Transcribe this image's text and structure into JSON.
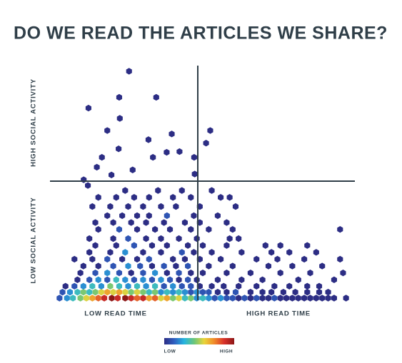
{
  "chart_data": {
    "type": "hexbin",
    "title": "DO WE READ THE ARTICLES WE SHARE?",
    "x_label_low": "LOW READ TIME",
    "x_label_high": "HIGH READ TIME",
    "y_label_high": "HIGH SOCIAL ACTIVITY",
    "y_label_low": "LOW SOCIAL ACTIVITY",
    "xlim": [
      0,
      100
    ],
    "ylim": [
      0,
      100
    ],
    "colorbar": {
      "label": "NUMBER OF ARTICLES",
      "low": "LOW",
      "high": "HIGH",
      "colors": [
        "#2c2d84",
        "#2f5fc0",
        "#26b5e0",
        "#6cc679",
        "#e9d43a",
        "#f08a2a",
        "#d8302a",
        "#8c1717"
      ],
      "clim": [
        1,
        10
      ]
    },
    "series": [
      {
        "x": [
          2,
          4.5,
          6.5,
          9,
          11,
          13,
          15,
          17,
          19.5,
          21.5,
          24,
          26,
          28,
          30,
          32,
          34,
          36,
          38,
          40,
          42,
          44,
          46,
          48,
          50,
          52,
          54,
          56,
          58,
          60,
          62,
          64,
          66,
          68,
          70,
          72,
          74,
          76,
          78,
          80,
          82,
          84,
          86,
          88,
          90,
          92,
          94,
          98,
          3,
          5.5,
          8,
          10,
          12,
          14,
          16,
          18,
          20,
          22,
          24,
          26,
          28,
          30,
          32,
          34,
          36,
          38,
          40,
          42,
          44,
          46,
          48,
          50,
          52,
          55,
          58,
          61,
          66,
          70,
          73,
          77,
          81,
          85,
          89,
          92,
          4,
          7,
          10,
          13,
          16,
          19,
          22,
          25,
          28,
          31,
          34,
          37,
          40,
          43,
          46,
          49,
          53,
          57,
          62,
          68,
          74,
          79,
          85,
          89,
          8,
          12,
          15,
          18,
          21,
          24,
          27,
          30,
          33,
          36,
          39,
          42,
          45,
          48,
          55,
          63,
          70,
          82,
          94,
          9,
          14,
          18,
          22,
          26,
          30,
          34,
          38,
          42,
          46,
          50,
          58,
          66,
          76,
          86,
          97,
          10,
          15,
          20,
          25,
          29,
          33,
          37,
          41,
          45,
          52,
          60,
          72,
          80,
          90,
          7,
          13,
          18,
          23,
          28,
          32,
          40,
          44,
          49,
          56,
          68,
          75,
          84,
          96,
          12,
          19,
          24,
          30,
          36,
          43,
          47,
          53,
          63,
          73,
          79,
          88,
          14,
          21,
          27,
          33,
          38,
          45,
          50,
          58,
          71,
          76,
          85,
          12,
          20,
          25,
          31,
          36,
          42,
          48,
          59,
          62,
          15,
          22,
          28,
          34,
          39,
          46,
          52,
          60,
          96,
          14,
          20,
          26,
          31,
          37,
          44,
          49,
          58,
          18,
          23,
          28,
          32,
          38,
          47,
          55,
          13,
          19,
          25,
          30,
          36,
          41,
          49,
          61,
          15,
          21,
          27,
          32,
          40,
          46,
          56,
          59,
          24,
          35,
          43,
          53,
          25.3,
          11.7,
          22,
          34.4,
          22.2,
          18,
          31.8,
          39.6,
          52.5,
          21.8,
          16.2,
          33.3,
          37.9,
          42.2,
          47.1,
          51.1,
          14.5,
          19.4,
          26.5,
          47.3,
          10.1,
          11.5
        ],
        "values": [
          0,
          0,
          0,
          0,
          0,
          0,
          0,
          0,
          0,
          0,
          0,
          0,
          0,
          0,
          0,
          0,
          0,
          0,
          0,
          0,
          0,
          0,
          0,
          0,
          0,
          0,
          0,
          0,
          0,
          0,
          0,
          0,
          0,
          0,
          0,
          0,
          0,
          0,
          0,
          0,
          0,
          0,
          0,
          0,
          0,
          0,
          0,
          2.6,
          2.6,
          2.6,
          2.6,
          2.6,
          2.6,
          2.6,
          2.6,
          2.6,
          2.6,
          2.6,
          2.6,
          2.6,
          2.6,
          2.6,
          2.6,
          2.6,
          2.6,
          2.6,
          2.6,
          2.6,
          2.6,
          2.6,
          2.6,
          2.6,
          2.6,
          2.6,
          2.6,
          2.6,
          2.6,
          2.6,
          2.6,
          2.6,
          2.6,
          2.6,
          2.6,
          5.2,
          5.2,
          5.2,
          5.2,
          5.2,
          5.2,
          5.2,
          5.2,
          5.2,
          5.2,
          5.2,
          5.2,
          5.2,
          5.2,
          5.2,
          5.2,
          5.2,
          5.2,
          5.2,
          5.2,
          5.2,
          5.2,
          5.2,
          5.2,
          8,
          8,
          8,
          8,
          8,
          8,
          8,
          8,
          8,
          8,
          8,
          8,
          8,
          8,
          8,
          8,
          8,
          8,
          8,
          11,
          11,
          11,
          11,
          11,
          11,
          11,
          11,
          11,
          11,
          11,
          11,
          11,
          11,
          11,
          11,
          14,
          14,
          14,
          14,
          14,
          14,
          14,
          14,
          14,
          14,
          14,
          14,
          14,
          14,
          17,
          17,
          17,
          17,
          17,
          17,
          17,
          17,
          17,
          17,
          17,
          17,
          17,
          17,
          20,
          20,
          20,
          20,
          20,
          20,
          20,
          20,
          20,
          20,
          20,
          20,
          23,
          23,
          23,
          23,
          23,
          23,
          23,
          23,
          23,
          23,
          23,
          26,
          26,
          26,
          26,
          26,
          26,
          26,
          26,
          26,
          30,
          30,
          30,
          30,
          30,
          30,
          30,
          30,
          30,
          33,
          33,
          33,
          33,
          33,
          33,
          33,
          33,
          36,
          36,
          36,
          36,
          36,
          36,
          36,
          40,
          40,
          40,
          40,
          40,
          40,
          40,
          40,
          44,
          44,
          44,
          44,
          44,
          44,
          44,
          44,
          47,
          47,
          47,
          47,
          99.1,
          83,
          87.7,
          87.7,
          78.5,
          73.2,
          69.2,
          71.7,
          73.2,
          65.2,
          61.5,
          61.5,
          63.7,
          64,
          61.5,
          67.7,
          57.2,
          53.8,
          56,
          54.2,
          51.7,
          49.2
        ],
        "counts": [
          2,
          3,
          4,
          5,
          6,
          7,
          8,
          9,
          10,
          9,
          10,
          9,
          8,
          9,
          7,
          8,
          6,
          7,
          5,
          6,
          4,
          5,
          3,
          4,
          3,
          2,
          3,
          2,
          2,
          1,
          2,
          1,
          2,
          1,
          1,
          2,
          1,
          1,
          1,
          1,
          1,
          1,
          1,
          1,
          1,
          1,
          1,
          2,
          3,
          4,
          5,
          4,
          5,
          6,
          7,
          6,
          7,
          6,
          5,
          6,
          5,
          4,
          5,
          3,
          4,
          3,
          4,
          3,
          2,
          3,
          2,
          2,
          1,
          1,
          2,
          1,
          1,
          1,
          1,
          1,
          1,
          1,
          1,
          1,
          2,
          3,
          4,
          3,
          5,
          4,
          3,
          4,
          3,
          4,
          2,
          3,
          2,
          2,
          1,
          1,
          1,
          1,
          1,
          1,
          1,
          1,
          1,
          1,
          2,
          3,
          2,
          4,
          3,
          2,
          3,
          2,
          3,
          2,
          1,
          2,
          1,
          1,
          1,
          1,
          1,
          1,
          1,
          2,
          3,
          2,
          1,
          2,
          3,
          1,
          2,
          1,
          1,
          1,
          1,
          1,
          1,
          1,
          1,
          1,
          2,
          3,
          2,
          1,
          2,
          1,
          2,
          1,
          1,
          1,
          1,
          1,
          1,
          1,
          2,
          1,
          1,
          2,
          1,
          1,
          1,
          1,
          1,
          1,
          1,
          1,
          1,
          1,
          3,
          1,
          1,
          2,
          1,
          1,
          1,
          1,
          1,
          1,
          1,
          1,
          2,
          1,
          1,
          1,
          1,
          1,
          1,
          1,
          1,
          1,
          1,
          2,
          1,
          1,
          1,
          1,
          1,
          1,
          1,
          2,
          1,
          1,
          1,
          1,
          1,
          1,
          1,
          1,
          1,
          1,
          1,
          1,
          1,
          1,
          1,
          1,
          1,
          1,
          1,
          2,
          1,
          1,
          1,
          1,
          1,
          1,
          1,
          1,
          1,
          1,
          1,
          1,
          1,
          1,
          1,
          1,
          1,
          1,
          1,
          1,
          1,
          1,
          1,
          1,
          1,
          1,
          1,
          1,
          1,
          1,
          1,
          1,
          1,
          1,
          1,
          1,
          1,
          1,
          1,
          1,
          1,
          1,
          1,
          1
        ]
      }
    ]
  }
}
